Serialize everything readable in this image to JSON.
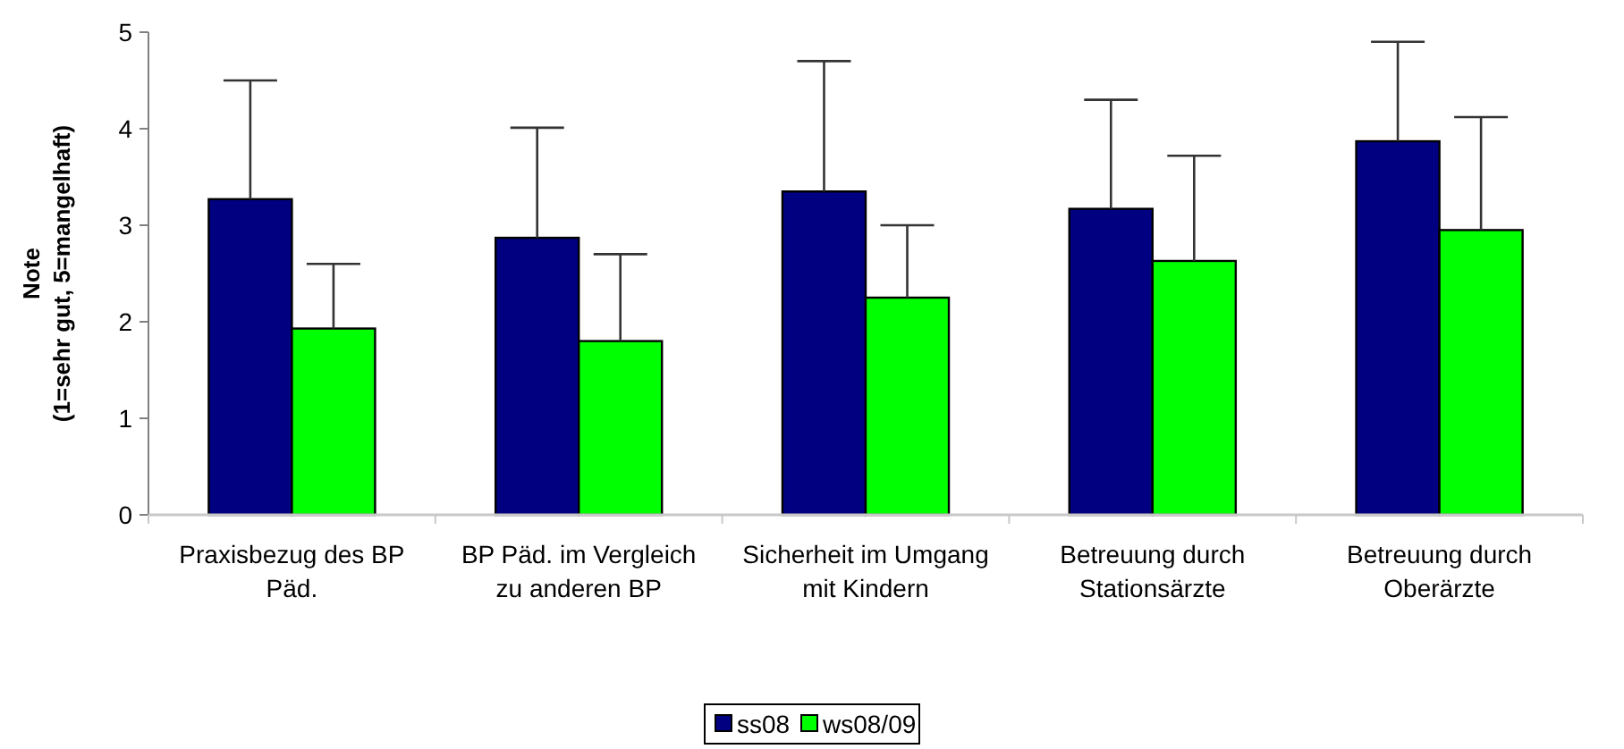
{
  "chart_data": {
    "type": "bar",
    "ylabel": "Note\n(1=sehr gut, 5=mangelhaft)",
    "categories": [
      "Praxisbezug des BP Päd.",
      "BP Päd. im Vergleich zu anderen BP",
      "Sicherheit im Umgang mit Kindern",
      "Betreuung durch Stationsärzte",
      "Betreuung durch Oberärzte"
    ],
    "series": [
      {
        "name": "ss08",
        "color": "#000080",
        "values": [
          3.27,
          2.87,
          3.35,
          3.17,
          3.87
        ],
        "errors": [
          [
            3.27,
            4.5
          ],
          [
            2.87,
            4.01
          ],
          [
            3.35,
            4.7
          ],
          [
            3.17,
            4.3
          ],
          [
            3.87,
            4.9
          ]
        ]
      },
      {
        "name": "ws08/09",
        "color": "#00ff00",
        "values": [
          1.93,
          1.8,
          2.25,
          2.63,
          2.95
        ],
        "errors": [
          [
            1.93,
            2.6
          ],
          [
            1.8,
            2.7
          ],
          [
            2.25,
            3.0
          ],
          [
            2.63,
            3.72
          ],
          [
            2.95,
            4.12
          ]
        ]
      }
    ],
    "ylim": [
      0,
      5
    ],
    "yticks": [
      0,
      1,
      2,
      3,
      4,
      5
    ],
    "grid": false,
    "legend": "bottom"
  }
}
